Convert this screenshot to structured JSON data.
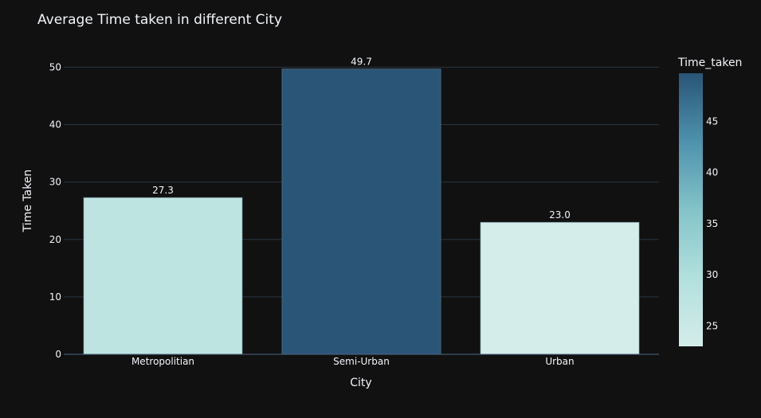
{
  "chart_data": {
    "type": "bar",
    "title": "Average Time taken in different City",
    "xlabel": "City",
    "ylabel": "Time Taken",
    "categories": [
      "Metropolitian",
      "Semi-Urban",
      "Urban"
    ],
    "values": [
      27.3,
      49.7,
      23.0
    ],
    "value_labels": [
      "27.3",
      "49.7",
      "23.0"
    ],
    "ylim": [
      0,
      52
    ],
    "yticks": [
      0,
      10,
      20,
      30,
      40,
      50
    ],
    "grid": true,
    "colorbar": {
      "title": "Time_taken",
      "range": [
        23.0,
        49.7
      ],
      "ticks": [
        25,
        30,
        35,
        40,
        45
      ],
      "colorscale": [
        "#d4ecea",
        "#b2e0dd",
        "#84c3c9",
        "#4e92ad",
        "#2a5577"
      ],
      "placement": "right"
    }
  },
  "colors": {
    "background": "#111111",
    "gridline": "#283442",
    "axisline": "#506784",
    "text": "#f2f5fa",
    "bar_outline": "#5e7e89"
  }
}
